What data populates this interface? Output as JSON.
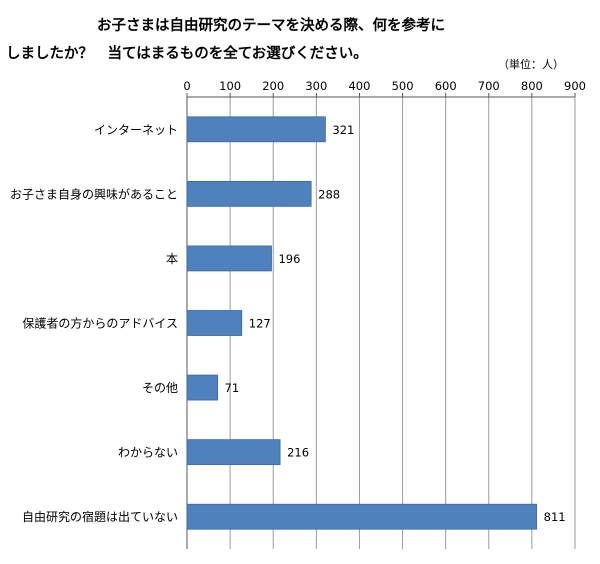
{
  "chart_data": {
    "type": "bar",
    "orientation": "horizontal",
    "title_line1": "お子さまは自由研究のテーマを決める際、何を参考に",
    "title_line2": "しましたか？　当てはまるものを全てお選びください。",
    "unit_label": "（単位：人）",
    "categories": [
      "インターネット",
      "お子さま自身の興味があること",
      "本",
      "保護者の方からのアドバイス",
      "その他",
      "わからない",
      "自由研究の宿題は出ていない"
    ],
    "values": [
      321,
      288,
      196,
      127,
      71,
      216,
      811
    ],
    "value_labels": [
      "321",
      "288",
      "196",
      "127",
      "71",
      "216",
      "811"
    ],
    "xlim": [
      0,
      900
    ],
    "ticks": [
      0,
      100,
      200,
      300,
      400,
      500,
      600,
      700,
      800,
      900
    ],
    "tick_labels": [
      "0",
      "100",
      "200",
      "300",
      "400",
      "500",
      "600",
      "700",
      "800",
      "900"
    ],
    "axis_position": "top",
    "grid": true,
    "bar_color": "#4f81bd",
    "bar_border_color": "#3a6aa3",
    "grid_color": "#9a9a9a"
  }
}
